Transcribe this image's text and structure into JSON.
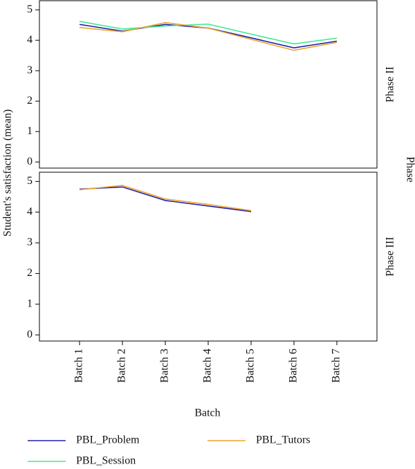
{
  "figure": {
    "xlabel": "Batch",
    "ylabel": "Student's satisfaction (mean)",
    "facet_title": "Phase"
  },
  "chart_data": [
    {
      "type": "line",
      "facet": "Phase II",
      "ylim": [
        -0.2,
        5.3
      ],
      "yticks": [
        0,
        1,
        2,
        3,
        4,
        5
      ],
      "series": [
        {
          "name": "PBL_Problem",
          "color": "#2020a8",
          "values": [
            4.52,
            4.3,
            4.52,
            4.4,
            4.08,
            3.75,
            3.97
          ]
        },
        {
          "name": "PBL_Session",
          "color": "#3de88f",
          "values": [
            4.62,
            4.37,
            4.47,
            4.53,
            4.2,
            3.88,
            4.07
          ]
        },
        {
          "name": "PBL_Tutors",
          "color": "#f0a030",
          "values": [
            4.42,
            4.28,
            4.58,
            4.4,
            4.03,
            3.67,
            3.93
          ]
        }
      ]
    },
    {
      "type": "line",
      "facet": "Phase III",
      "categories": [
        "Batch 1",
        "Batch 2",
        "Batch 3",
        "Batch 4",
        "Batch 5",
        "Batch 6",
        "Batch 7"
      ],
      "ylim": [
        -0.2,
        5.3
      ],
      "yticks": [
        0,
        1,
        2,
        3,
        4,
        5
      ],
      "series": [
        {
          "name": "PBL_Problem",
          "color": "#2020a8",
          "values": [
            4.75,
            4.82,
            4.38,
            4.2,
            4.02,
            null,
            null
          ]
        },
        {
          "name": "PBL_Tutors",
          "color": "#f0a030",
          "values": [
            4.73,
            4.87,
            4.43,
            4.25,
            4.05,
            null,
            null
          ]
        }
      ]
    }
  ]
}
